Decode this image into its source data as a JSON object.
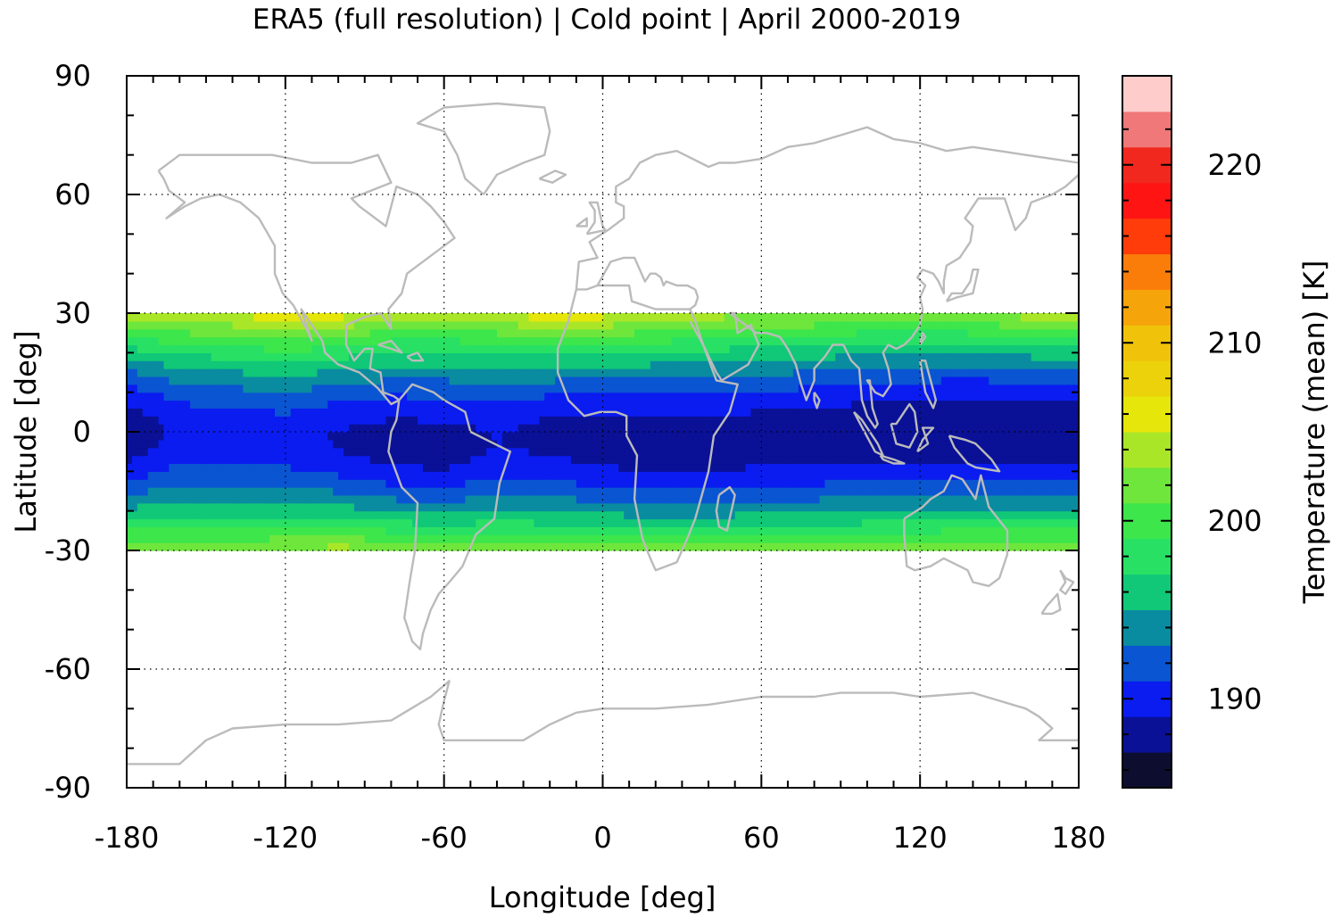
{
  "title": "ERA5 (full resolution) | Cold point | April 2000-2019",
  "chart_data": {
    "type": "heatmap",
    "title": "ERA5 (full resolution) | Cold point | April 2000-2019",
    "xlabel": "Longitude [deg]",
    "ylabel": "Latitude [deg]",
    "xlim": [
      -180,
      180
    ],
    "ylim": [
      -90,
      90
    ],
    "x_ticks": [
      -180,
      -120,
      -60,
      0,
      60,
      120,
      180
    ],
    "y_ticks": [
      90,
      60,
      30,
      0,
      -30,
      -60,
      -90
    ],
    "grid": true,
    "data_lat_range": [
      -30,
      30
    ],
    "colorbar": {
      "label": "Temperature (mean) [K]",
      "range": [
        185,
        223
      ],
      "ticks": [
        190,
        200,
        210,
        220
      ],
      "levels": [
        {
          "from": 185,
          "to": 187,
          "color": "#0d0d30"
        },
        {
          "from": 187,
          "to": 189,
          "color": "#0a1196"
        },
        {
          "from": 189,
          "to": 191,
          "color": "#0a1cf0"
        },
        {
          "from": 191,
          "to": 193,
          "color": "#0a55d2"
        },
        {
          "from": 193,
          "to": 195,
          "color": "#0a8ca0"
        },
        {
          "from": 195,
          "to": 197,
          "color": "#10c878"
        },
        {
          "from": 197,
          "to": 199,
          "color": "#28e164"
        },
        {
          "from": 199,
          "to": 201,
          "color": "#3ce64b"
        },
        {
          "from": 201,
          "to": 203,
          "color": "#6ee63c"
        },
        {
          "from": 203,
          "to": 205,
          "color": "#aae628"
        },
        {
          "from": 205,
          "to": 207,
          "color": "#e6e60a"
        },
        {
          "from": 207,
          "to": 209,
          "color": "#ebd20a"
        },
        {
          "from": 209,
          "to": 211,
          "color": "#f0c30a"
        },
        {
          "from": 211,
          "to": 213,
          "color": "#f5a50a"
        },
        {
          "from": 213,
          "to": 215,
          "color": "#fa7d0a"
        },
        {
          "from": 215,
          "to": 217,
          "color": "#ff3c0a"
        },
        {
          "from": 217,
          "to": 219,
          "color": "#ff1414"
        },
        {
          "from": 219,
          "to": 221,
          "color": "#f0281e"
        },
        {
          "from": 221,
          "to": 223,
          "color": "#f07878"
        },
        {
          "from": 223,
          "to": 225,
          "color": "#ffcccc"
        }
      ]
    },
    "field": {
      "lon_nodes": [
        -180,
        -160,
        -140,
        -120,
        -100,
        -80,
        -60,
        -40,
        -20,
        0,
        20,
        40,
        60,
        80,
        100,
        120,
        140,
        160,
        180
      ],
      "north_max_temp": [
        204.5,
        205,
        205.5,
        206.5,
        206,
        204.5,
        204,
        205,
        206.5,
        206,
        205,
        204,
        203.5,
        203.5,
        203,
        203,
        203.5,
        204,
        204.5
      ],
      "south_max_temp": [
        203.5,
        203,
        203,
        203.5,
        204,
        203.5,
        202.5,
        202.5,
        202,
        202,
        202,
        202,
        202,
        202,
        202.5,
        203,
        203.5,
        203.5,
        203.5
      ],
      "min_temp": [
        187.5,
        189.6,
        189.8,
        189.8,
        188.8,
        188,
        188,
        189,
        188.3,
        187.8,
        187.5,
        187.6,
        187.8,
        187.8,
        187.5,
        187.3,
        187.2,
        187.3,
        187.5
      ],
      "center_lat": [
        0,
        0,
        -1,
        -2,
        -2,
        -3,
        -4,
        -2,
        -1,
        -2,
        -3,
        -3,
        -2,
        -1,
        0,
        0,
        1,
        0,
        0
      ]
    },
    "coastline_color": "#bbbbbb"
  }
}
